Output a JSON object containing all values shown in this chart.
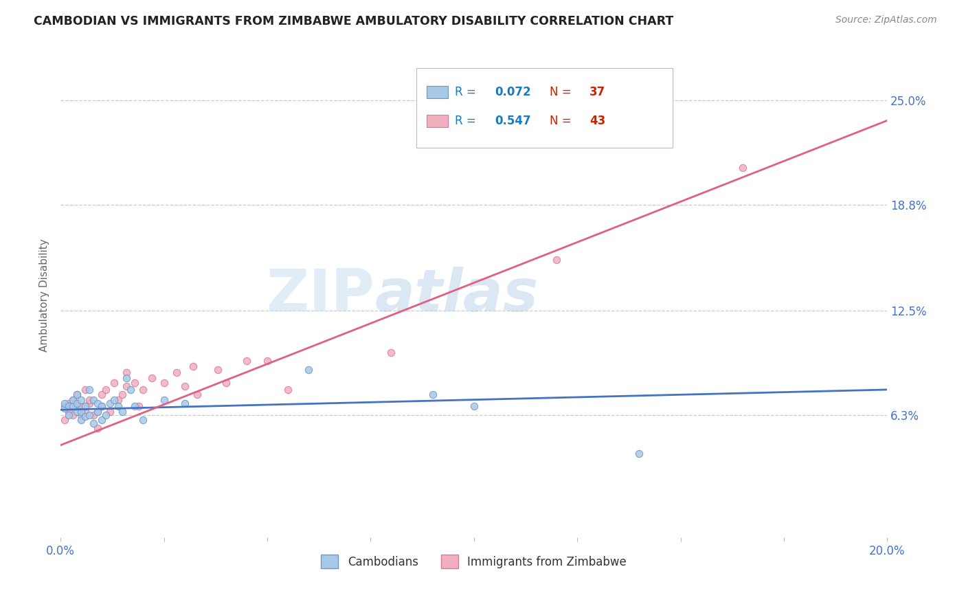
{
  "title": "CAMBODIAN VS IMMIGRANTS FROM ZIMBABWE AMBULATORY DISABILITY CORRELATION CHART",
  "source": "Source: ZipAtlas.com",
  "ylabel": "Ambulatory Disability",
  "xlim": [
    0.0,
    0.2
  ],
  "ylim": [
    -0.01,
    0.278
  ],
  "ytick_labels_right": [
    "6.3%",
    "12.5%",
    "18.8%",
    "25.0%"
  ],
  "ytick_values_right": [
    0.063,
    0.125,
    0.188,
    0.25
  ],
  "gridline_color": "#cccccc",
  "background_color": "#ffffff",
  "cambodian_color": "#a8c8e8",
  "cambodian_edge_color": "#6699cc",
  "zimbabwe_color": "#f0b0c0",
  "zimbabwe_edge_color": "#dd7799",
  "trend_cambodian_color": "#4472C4",
  "trend_zimbabwe_color": "#e06080",
  "R_cambodian": "0.072",
  "N_cambodian": "37",
  "R_zimbabwe": "0.547",
  "N_zimbabwe": "43",
  "legend_R_color": "#1a7abf",
  "legend_N_color": "#cc2200",
  "watermark_color": "#cce5f5",
  "marker_size": 55,
  "cambodian_x": [
    0.001,
    0.001,
    0.002,
    0.002,
    0.003,
    0.003,
    0.004,
    0.004,
    0.004,
    0.005,
    0.005,
    0.005,
    0.006,
    0.006,
    0.007,
    0.007,
    0.008,
    0.008,
    0.009,
    0.009,
    0.01,
    0.01,
    0.011,
    0.012,
    0.013,
    0.014,
    0.015,
    0.016,
    0.017,
    0.018,
    0.02,
    0.025,
    0.03,
    0.06,
    0.09,
    0.1,
    0.14
  ],
  "cambodian_y": [
    0.067,
    0.07,
    0.063,
    0.068,
    0.068,
    0.072,
    0.065,
    0.07,
    0.075,
    0.06,
    0.065,
    0.072,
    0.062,
    0.068,
    0.063,
    0.078,
    0.058,
    0.072,
    0.065,
    0.07,
    0.06,
    0.068,
    0.063,
    0.07,
    0.072,
    0.068,
    0.065,
    0.085,
    0.078,
    0.068,
    0.06,
    0.072,
    0.07,
    0.09,
    0.075,
    0.068,
    0.04
  ],
  "zimbabwe_x": [
    0.001,
    0.001,
    0.002,
    0.002,
    0.003,
    0.003,
    0.004,
    0.004,
    0.005,
    0.005,
    0.006,
    0.006,
    0.007,
    0.007,
    0.008,
    0.009,
    0.009,
    0.01,
    0.01,
    0.011,
    0.012,
    0.013,
    0.014,
    0.015,
    0.016,
    0.016,
    0.018,
    0.019,
    0.02,
    0.022,
    0.025,
    0.028,
    0.03,
    0.032,
    0.033,
    0.038,
    0.04,
    0.045,
    0.05,
    0.055,
    0.08,
    0.12,
    0.165
  ],
  "zimbabwe_y": [
    0.06,
    0.068,
    0.065,
    0.07,
    0.063,
    0.072,
    0.068,
    0.075,
    0.063,
    0.068,
    0.078,
    0.065,
    0.07,
    0.072,
    0.063,
    0.065,
    0.055,
    0.075,
    0.068,
    0.078,
    0.065,
    0.082,
    0.072,
    0.075,
    0.08,
    0.088,
    0.082,
    0.068,
    0.078,
    0.085,
    0.082,
    0.088,
    0.08,
    0.092,
    0.075,
    0.09,
    0.082,
    0.095,
    0.095,
    0.078,
    0.1,
    0.155,
    0.21
  ],
  "trend_cam_x0": 0.0,
  "trend_cam_x1": 0.2,
  "trend_cam_y0": 0.066,
  "trend_cam_y1": 0.078,
  "trend_zim_x0": 0.0,
  "trend_zim_x1": 0.2,
  "trend_zim_y0": 0.045,
  "trend_zim_y1": 0.238
}
